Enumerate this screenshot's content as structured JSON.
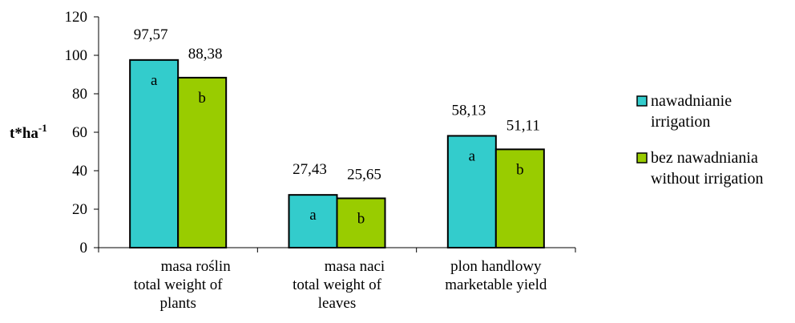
{
  "chart_data": {
    "type": "bar",
    "title": "",
    "ylabel": "t*ha",
    "ylabel_superscript": "-1",
    "xlabel": "",
    "ylim": [
      0,
      120
    ],
    "yticks": [
      0,
      20,
      40,
      60,
      80,
      100,
      120
    ],
    "grid": false,
    "legend_position": "right",
    "categories": [
      [
        "masa roślin",
        "total weight of",
        "plants"
      ],
      [
        "masa naci",
        "total weight of",
        "leaves"
      ],
      [
        "plon handlowy",
        "marketable yield"
      ]
    ],
    "series": [
      {
        "name": [
          "nawadnianie",
          "irrigation"
        ],
        "color": "#33cccc",
        "values": [
          97.57,
          27.43,
          58.13
        ],
        "value_labels": [
          "97,57",
          "27,43",
          "58,13"
        ],
        "letters": [
          "a",
          "a",
          "a"
        ]
      },
      {
        "name": [
          "bez nawadniania",
          "without irrigation"
        ],
        "color": "#99cc00",
        "values": [
          88.38,
          25.65,
          51.11
        ],
        "value_labels": [
          "88,38",
          "25,65",
          "51,11"
        ],
        "letters": [
          "b",
          "b",
          "b"
        ]
      }
    ]
  }
}
